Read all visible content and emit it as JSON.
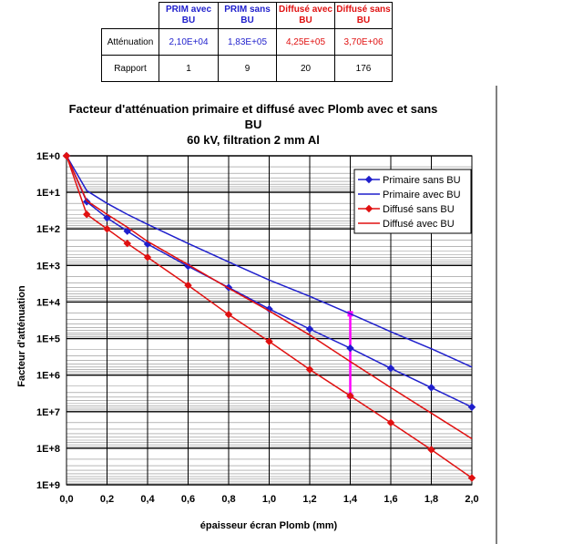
{
  "table": {
    "headers": [
      "PRIM avec BU",
      "PRIM sans BU",
      "Diffusé avec BU",
      "Diffusé sans BU"
    ],
    "header_colors": [
      "#1f1fcc",
      "#1f1fcc",
      "#e01010",
      "#e01010"
    ],
    "rows": [
      {
        "label": "Atténuation",
        "values": [
          "2,10E+04",
          "1,83E+05",
          "4,25E+05",
          "3,70E+06"
        ]
      },
      {
        "label": "Rapport",
        "values": [
          "1",
          "9",
          "20",
          "176"
        ]
      }
    ]
  },
  "chart_data": {
    "type": "line",
    "title_lines": [
      "Facteur d'atténuation primaire et diffusé avec Plomb avec et sans",
      "BU",
      "60 kV, filtration 2 mm Al"
    ],
    "xlabel": "épaisseur écran Plomb (mm)",
    "ylabel": "Facteur d'atténuation",
    "xlim": [
      0,
      2
    ],
    "x_ticks": [
      "0,0",
      "0,2",
      "0,4",
      "0,6",
      "0,8",
      "1,0",
      "1,2",
      "1,4",
      "1,6",
      "1,8",
      "2,0"
    ],
    "y_scale": "log",
    "y_inverted": true,
    "ylim": [
      1,
      1000000000
    ],
    "y_ticks": [
      "1E+0",
      "1E+1",
      "1E+2",
      "1E+3",
      "1E+4",
      "1E+5",
      "1E+6",
      "1E+7",
      "1E+8",
      "1E+9"
    ],
    "grid": true,
    "legend_position": "top-right",
    "series": [
      {
        "name": "Primaire sans BU",
        "color": "#1f1fcc",
        "markers": true,
        "x": [
          0,
          0.1,
          0.2,
          0.3,
          0.4,
          0.6,
          0.8,
          1.0,
          1.2,
          1.4,
          1.6,
          1.8,
          2.0
        ],
        "y": [
          1,
          18,
          50,
          115,
          260,
          1050,
          4000,
          15500,
          55000,
          183000,
          650000,
          2200000,
          7500000
        ]
      },
      {
        "name": "Primaire avec BU",
        "color": "#1f1fcc",
        "markers": false,
        "x": [
          0,
          0.1,
          0.2,
          0.3,
          0.4,
          0.6,
          0.8,
          1.0,
          1.2,
          1.4,
          1.6,
          1.8,
          2.0
        ],
        "y": [
          1,
          9,
          20,
          40,
          75,
          250,
          800,
          2500,
          7000,
          21000,
          65000,
          190000,
          600000
        ]
      },
      {
        "name": "Diffusé sans BU",
        "color": "#e01010",
        "markers": true,
        "x": [
          0,
          0.1,
          0.2,
          0.3,
          0.4,
          0.6,
          0.8,
          1.0,
          1.2,
          1.4,
          1.6,
          1.8,
          2.0
        ],
        "y": [
          1,
          40,
          100,
          250,
          600,
          3500,
          22000,
          120000,
          700000,
          3700000,
          20000000,
          110000000,
          650000000
        ]
      },
      {
        "name": "Diffusé avec BU",
        "color": "#e01010",
        "markers": false,
        "x": [
          0,
          0.1,
          0.2,
          0.3,
          0.4,
          0.6,
          0.8,
          1.0,
          1.2,
          1.4,
          1.6,
          1.8,
          2.0
        ],
        "y": [
          1,
          17,
          40,
          90,
          220,
          950,
          4200,
          17500,
          80000,
          425000,
          2200000,
          11000000,
          55000000
        ]
      }
    ],
    "annotation": {
      "type": "vertical-segment",
      "x": 1.4,
      "y_from": 21000,
      "y_to": 3700000,
      "color": "#ff00ff"
    }
  }
}
